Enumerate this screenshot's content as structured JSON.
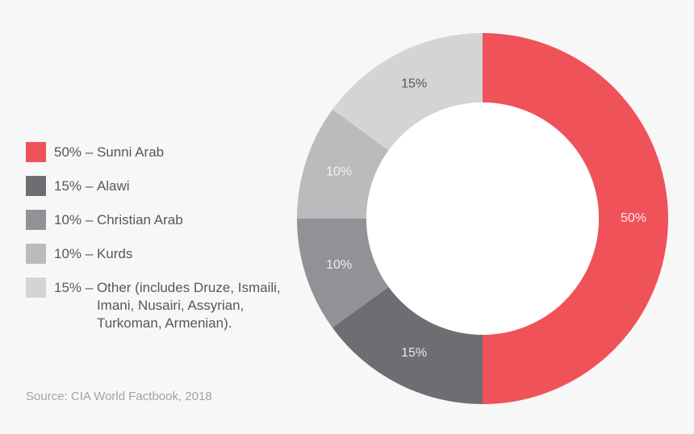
{
  "chart_data": {
    "type": "pie",
    "subtype": "donut",
    "title": "",
    "categories": [
      "Sunni Arab",
      "Alawi",
      "Christian Arab",
      "Kurds",
      "Other (includes Druze, Ismaili, Imani, Nusairi, Assyrian, Turkoman, Armenian)."
    ],
    "values": [
      50,
      15,
      10,
      10,
      15
    ],
    "unit": "%",
    "colors": [
      "#f0525a",
      "#6d6e72",
      "#919296",
      "#bbbbbd",
      "#d3d4d6"
    ],
    "data_labels": [
      "50%",
      "15%",
      "10%",
      "10%",
      "15%"
    ],
    "label_colors": [
      "#fde8e9",
      "#e8e8e9",
      "#eeeeef",
      "#f2f2f3",
      "#58585b"
    ],
    "start_angle_deg": 0,
    "direction": "clockwise",
    "legend_position": "left",
    "source": "Source: CIA World Factbook, 2018"
  },
  "legend": {
    "items": [
      {
        "pct": "50% – ",
        "label": "Sunni Arab",
        "color": "#f0525a"
      },
      {
        "pct": "15% – ",
        "label": "Alawi",
        "color": "#6d6e72"
      },
      {
        "pct": "10% – ",
        "label": "Christian Arab",
        "color": "#919296"
      },
      {
        "pct": "10% – ",
        "label": "Kurds",
        "color": "#bbbbbd"
      },
      {
        "pct": "15% – ",
        "label": "Other (includes Druze, Ismaili, Imani, Nusairi, Assyrian, Turkoman, Armenian).",
        "color": "#d3d4d6"
      }
    ]
  },
  "footer": {
    "source": "Source: CIA World Factbook, 2018"
  }
}
